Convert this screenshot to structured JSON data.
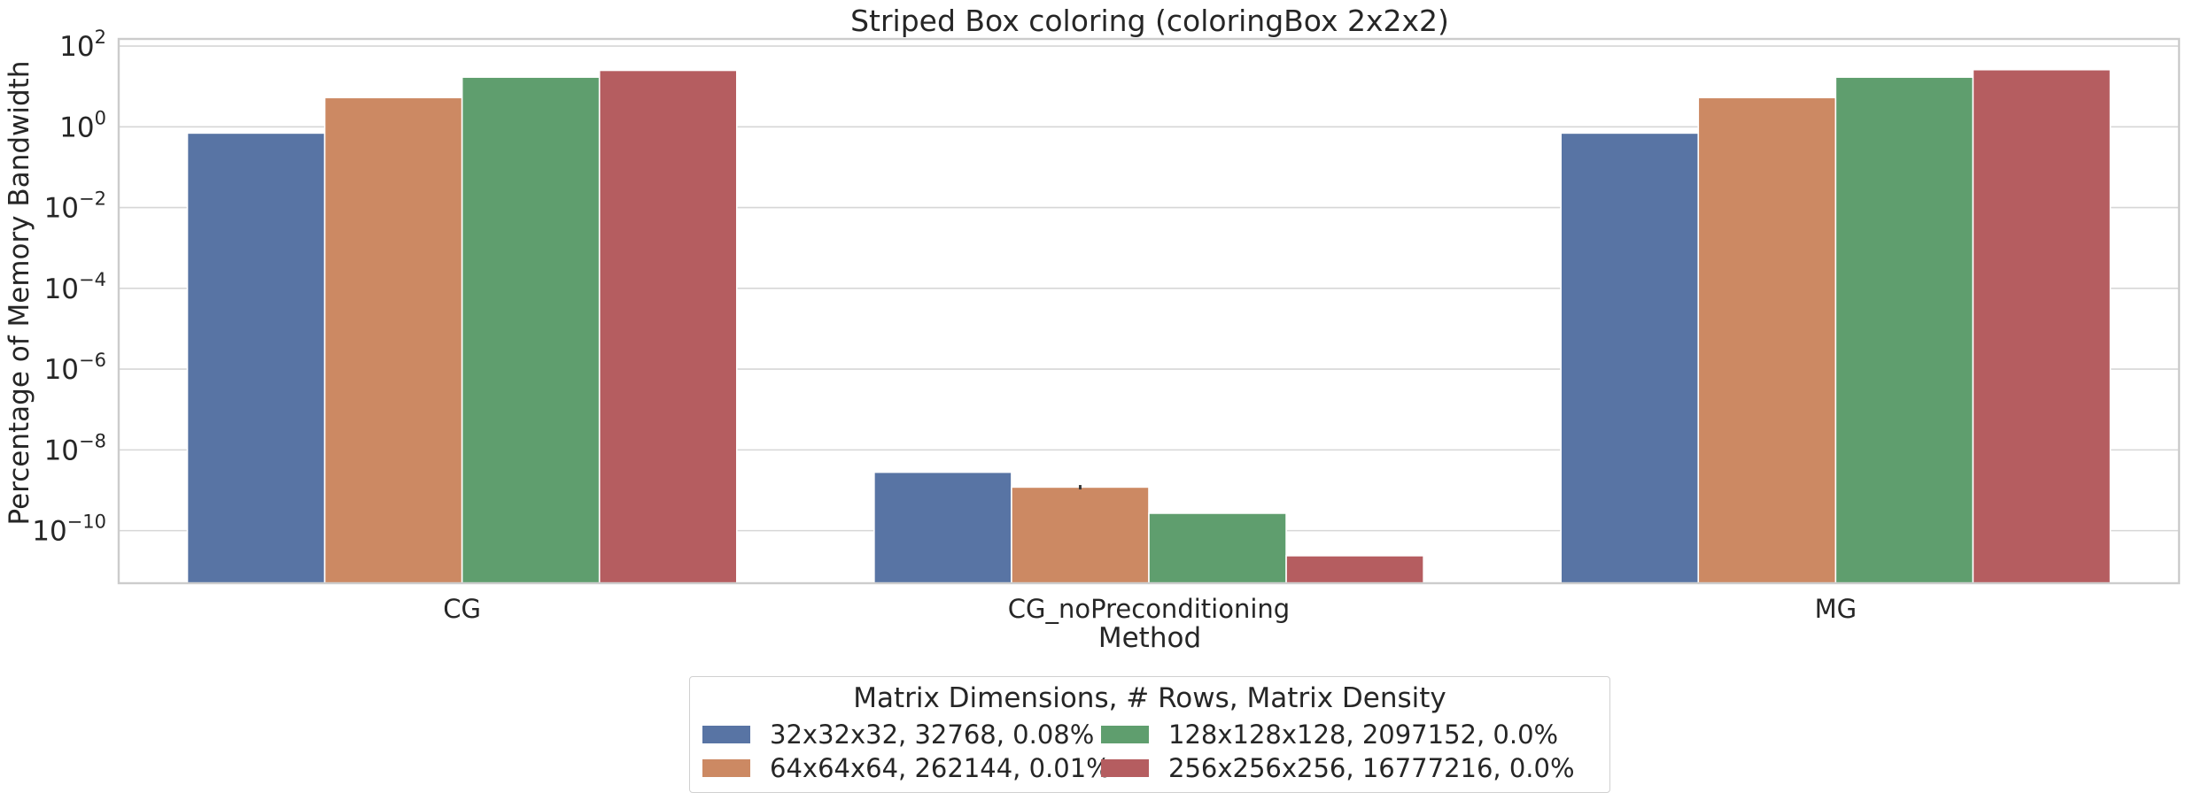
{
  "chart_data": {
    "type": "bar",
    "title": "Striped Box coloring (coloringBox 2x2x2)",
    "xlabel": "Method",
    "ylabel": "Percentage of Memory Bandwidth",
    "yscale": "log",
    "ylim": [
      5e-12,
      150
    ],
    "yticks": [
      {
        "exp": "2",
        "value": 100
      },
      {
        "exp": "0",
        "value": 1
      },
      {
        "exp": "−2",
        "value": 0.01
      },
      {
        "exp": "−4",
        "value": 0.0001
      },
      {
        "exp": "−6",
        "value": 1e-06
      },
      {
        "exp": "−8",
        "value": 1e-08
      },
      {
        "exp": "−10",
        "value": 1e-10
      }
    ],
    "ytick_base": "10",
    "categories": [
      "CG",
      "CG_noPreconditioning",
      "MG"
    ],
    "series": [
      {
        "name": "32x32x32, 32768, 0.08%",
        "color": "#5874a4",
        "values": [
          0.7,
          2.8e-09,
          0.7
        ]
      },
      {
        "name": "64x64x64, 262144, 0.01%",
        "color": "#cc8963",
        "values": [
          5.3,
          1.2e-09,
          5.3
        ]
      },
      {
        "name": "128x128x128, 2097152, 0.0%",
        "color": "#5f9e6e",
        "values": [
          17,
          2.7e-10,
          17
        ]
      },
      {
        "name": "256x256x256, 16777216, 0.0%",
        "color": "#b55d60",
        "values": [
          25,
          2.4e-11,
          26
        ]
      }
    ],
    "error_bars": [
      {
        "category": "CG_noPreconditioning",
        "series": 1,
        "low": 1.05e-09,
        "high": 1.35e-09
      }
    ],
    "grid": true,
    "legend": {
      "title": "Matrix Dimensions, # Rows, Matrix Density",
      "placement": "bottom-center",
      "columns": 2
    }
  }
}
